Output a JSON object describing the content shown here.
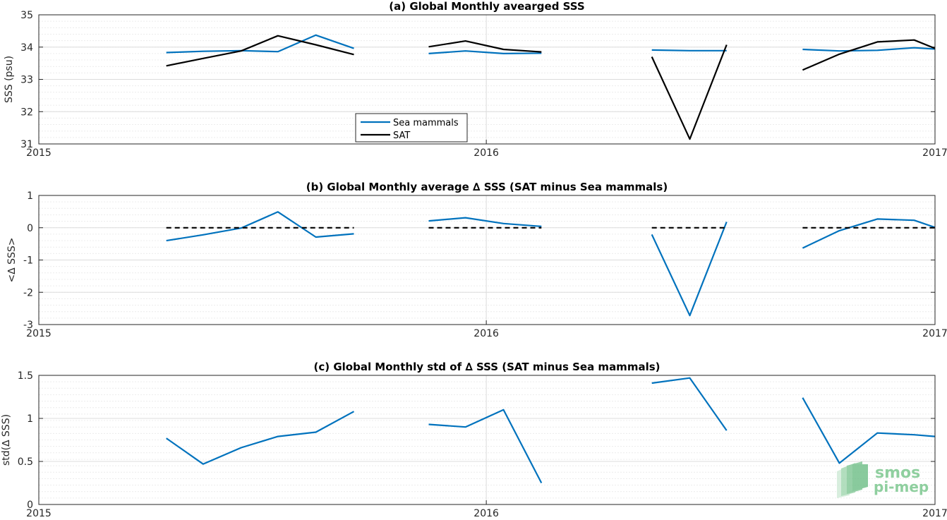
{
  "chart_data": [
    {
      "type": "line",
      "title": "(a) Global Monthly avearged SSS",
      "xlabel": "",
      "ylabel": "SSS (psu)",
      "xlim": [
        "2015-01-01",
        "2017-01-01"
      ],
      "ylim": [
        31,
        35
      ],
      "yticks": [
        31,
        32,
        33,
        34,
        35
      ],
      "xtick_labels": [
        "2015",
        "2016",
        "2017"
      ],
      "grid": true,
      "legend": "bottom-center",
      "series": [
        {
          "name": "Sea mammals",
          "color": "#0072BD",
          "segments": [
            {
              "x": [
                "2015-04-15",
                "2015-05-15",
                "2015-06-15",
                "2015-07-15",
                "2015-08-15",
                "2015-09-15"
              ],
              "y": [
                33.83,
                33.87,
                33.89,
                33.86,
                34.37,
                33.96
              ]
            },
            {
              "x": [
                "2015-11-15",
                "2015-12-15",
                "2016-01-15",
                "2016-02-15"
              ],
              "y": [
                33.8,
                33.88,
                33.8,
                33.81
              ]
            },
            {
              "x": [
                "2016-05-15",
                "2016-06-15",
                "2016-07-15"
              ],
              "y": [
                33.91,
                33.89,
                33.89
              ]
            },
            {
              "x": [
                "2016-09-15",
                "2016-10-15",
                "2016-11-15",
                "2016-12-15",
                "2017-01-01"
              ],
              "y": [
                33.93,
                33.88,
                33.9,
                33.98,
                33.94
              ]
            }
          ]
        },
        {
          "name": "SAT",
          "color": "#000000",
          "segments": [
            {
              "x": [
                "2015-04-15",
                "2015-05-15",
                "2015-06-15",
                "2015-07-15",
                "2015-08-15",
                "2015-09-15"
              ],
              "y": [
                33.42,
                33.65,
                33.88,
                34.35,
                34.07,
                33.77
              ]
            },
            {
              "x": [
                "2015-11-15",
                "2015-12-15",
                "2016-01-15",
                "2016-02-15"
              ],
              "y": [
                34.01,
                34.19,
                33.93,
                33.85
              ]
            },
            {
              "x": [
                "2016-05-15",
                "2016-06-15",
                "2016-07-15"
              ],
              "y": [
                33.7,
                31.15,
                34.07
              ]
            },
            {
              "x": [
                "2016-09-15",
                "2016-10-15",
                "2016-11-15",
                "2016-12-15",
                "2017-01-01"
              ],
              "y": [
                33.29,
                33.78,
                34.16,
                34.22,
                33.96
              ]
            }
          ]
        }
      ]
    },
    {
      "type": "line",
      "title": "(b) Global Monthly average ∆ SSS (SAT minus Sea mammals)",
      "xlabel": "",
      "ylabel": "<∆ SSS>",
      "xlim": [
        "2015-01-01",
        "2017-01-01"
      ],
      "ylim": [
        -3,
        1
      ],
      "yticks": [
        -3,
        -2,
        -1,
        0,
        1
      ],
      "xtick_labels": [
        "2015",
        "2016",
        "2017"
      ],
      "grid": true,
      "series": [
        {
          "color": "#0072BD",
          "segments": [
            {
              "x": [
                "2015-04-15",
                "2015-05-15",
                "2015-06-15",
                "2015-07-15",
                "2015-08-15",
                "2015-09-15"
              ],
              "y": [
                -0.4,
                -0.22,
                -0.01,
                0.49,
                -0.29,
                -0.19
              ]
            },
            {
              "x": [
                "2015-11-15",
                "2015-12-15",
                "2016-01-15",
                "2016-02-15"
              ],
              "y": [
                0.21,
                0.31,
                0.13,
                0.04
              ]
            },
            {
              "x": [
                "2016-05-15",
                "2016-06-15",
                "2016-07-15"
              ],
              "y": [
                -0.21,
                -2.72,
                0.18
              ]
            },
            {
              "x": [
                "2016-09-15",
                "2016-10-15",
                "2016-11-15",
                "2016-12-15",
                "2017-01-01"
              ],
              "y": [
                -0.63,
                -0.09,
                0.27,
                0.23,
                0.01
              ]
            }
          ]
        },
        {
          "color": "#000000",
          "style": "dashed",
          "segments": [
            {
              "x": [
                "2015-04-15",
                "2015-09-15"
              ],
              "y": [
                0,
                0
              ]
            },
            {
              "x": [
                "2015-11-15",
                "2016-02-15"
              ],
              "y": [
                0,
                0
              ]
            },
            {
              "x": [
                "2016-05-15",
                "2016-07-15"
              ],
              "y": [
                0,
                0
              ]
            },
            {
              "x": [
                "2016-09-15",
                "2017-01-01"
              ],
              "y": [
                0,
                0
              ]
            }
          ]
        }
      ]
    },
    {
      "type": "line",
      "title": "(c) Global Monthly std of ∆ SSS (SAT minus Sea mammals)",
      "xlabel": "",
      "ylabel": "std(∆ SSS)",
      "xlim": [
        "2015-01-01",
        "2017-01-01"
      ],
      "ylim": [
        0,
        1.5
      ],
      "yticks": [
        0,
        0.5,
        1,
        1.5
      ],
      "xtick_labels": [
        "2015",
        "2016",
        "2017"
      ],
      "grid": true,
      "series": [
        {
          "color": "#0072BD",
          "segments": [
            {
              "x": [
                "2015-04-15",
                "2015-05-15",
                "2015-06-15",
                "2015-07-15",
                "2015-08-15",
                "2015-09-15"
              ],
              "y": [
                0.77,
                0.47,
                0.66,
                0.79,
                0.84,
                1.08
              ]
            },
            {
              "x": [
                "2015-11-15",
                "2015-12-15",
                "2016-01-15",
                "2016-02-15"
              ],
              "y": [
                0.93,
                0.9,
                1.1,
                0.25
              ]
            },
            {
              "x": [
                "2016-05-15",
                "2016-06-15",
                "2016-07-15"
              ],
              "y": [
                1.41,
                1.47,
                0.86
              ]
            },
            {
              "x": [
                "2016-09-15",
                "2016-10-15",
                "2016-11-15",
                "2016-12-15",
                "2017-01-01"
              ],
              "y": [
                1.24,
                0.48,
                0.83,
                0.81,
                0.79
              ]
            }
          ]
        }
      ]
    }
  ],
  "logo": {
    "line1": "smos",
    "line2": "pi-mep"
  }
}
